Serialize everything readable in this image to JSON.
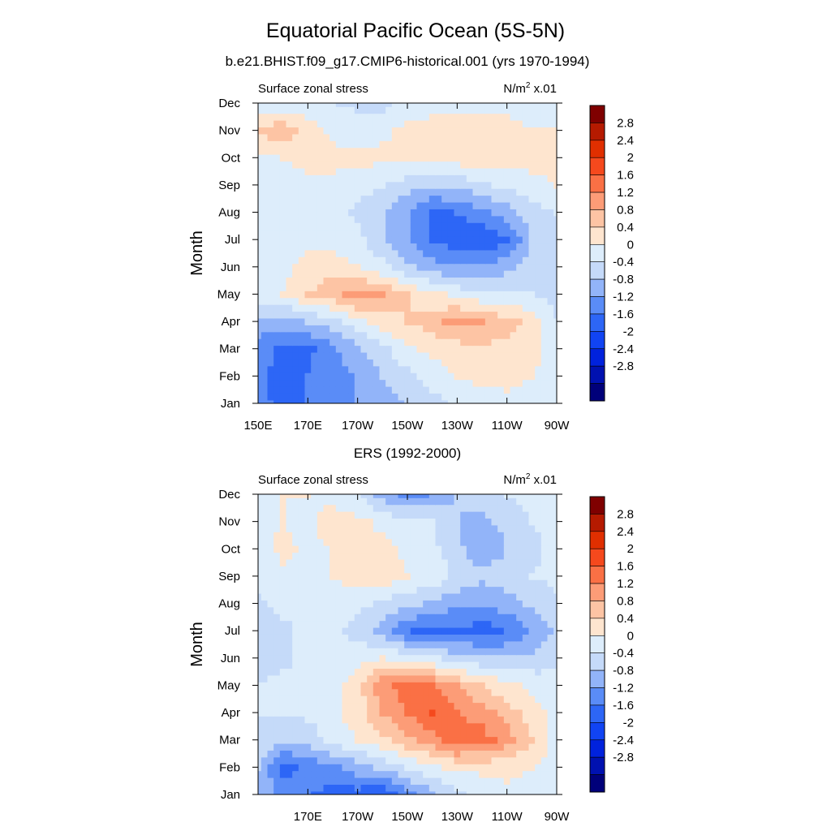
{
  "title": "Equatorial Pacific Ocean (5S-5N)",
  "chart_data": [
    {
      "type": "heatmap",
      "subtitle": "b.e21.BHIST.f09_g17.CMIP6-historical.001 (yrs 1970-1994)",
      "left_label": "Surface zonal stress",
      "right_label_base": "N/m",
      "right_label_exp": "2",
      "right_label_scale": " x.01",
      "ylabel": "Month",
      "x_ticks": [
        "150E",
        "170E",
        "170W",
        "150W",
        "130W",
        "110W",
        "90W"
      ],
      "x_ticks_values": [
        150,
        170,
        190,
        210,
        230,
        250,
        270
      ],
      "y_ticks": [
        "Jan",
        "Feb",
        "Mar",
        "Apr",
        "May",
        "Jun",
        "Jul",
        "Aug",
        "Sep",
        "Oct",
        "Nov",
        "Dec"
      ],
      "xlim": [
        150,
        270
      ],
      "ylim": [
        1,
        12
      ],
      "x": [
        150,
        160,
        170,
        180,
        190,
        200,
        210,
        220,
        230,
        240,
        250,
        260,
        270
      ],
      "rows": [
        {
          "month": "Jan",
          "values": [
            -1.0,
            -1.4,
            -1.2,
            -1.0,
            -0.8,
            -0.6,
            -0.4,
            -0.2,
            0.1,
            0.2,
            0.3,
            0.3,
            0.2
          ]
        },
        {
          "month": "Feb",
          "values": [
            -1.0,
            -1.5,
            -1.2,
            -1.0,
            -0.8,
            -0.4,
            -0.1,
            0.2,
            0.4,
            0.5,
            0.5,
            0.4,
            0.3
          ]
        },
        {
          "month": "Mar",
          "values": [
            -0.9,
            -1.4,
            -1.3,
            -0.9,
            -0.5,
            -0.1,
            0.3,
            0.5,
            0.6,
            0.7,
            0.7,
            0.5,
            0.2
          ]
        },
        {
          "month": "Apr",
          "values": [
            -0.6,
            -0.6,
            -0.4,
            -0.2,
            0.3,
            0.6,
            0.8,
            1.0,
            1.4,
            1.2,
            1.0,
            0.6,
            0.0
          ]
        },
        {
          "month": "May",
          "values": [
            0.2,
            0.4,
            0.8,
            1.1,
            1.4,
            1.2,
            0.8,
            0.5,
            0.3,
            0.1,
            0.0,
            0.0,
            -0.1
          ]
        },
        {
          "month": "Jun",
          "values": [
            0.1,
            0.3,
            0.5,
            0.6,
            0.4,
            0.1,
            -0.3,
            -0.6,
            -0.8,
            -0.7,
            -0.5,
            -0.2,
            -0.1
          ]
        },
        {
          "month": "Jul",
          "values": [
            0.1,
            0.2,
            0.3,
            0.3,
            0.1,
            -0.3,
            -0.8,
            -1.3,
            -1.4,
            -1.6,
            -1.3,
            -0.4,
            -0.1
          ]
        },
        {
          "month": "Aug",
          "values": [
            0.0,
            0.1,
            0.2,
            0.1,
            -0.1,
            -0.4,
            -0.8,
            -1.3,
            -1.2,
            -0.9,
            -0.6,
            -0.2,
            0.0
          ]
        },
        {
          "month": "Sep",
          "values": [
            0.1,
            0.2,
            0.3,
            0.3,
            0.2,
            0.0,
            -0.2,
            -0.4,
            -0.3,
            -0.1,
            0.1,
            0.3,
            0.4
          ]
        },
        {
          "month": "Oct",
          "values": [
            0.3,
            0.4,
            0.5,
            0.5,
            0.5,
            0.5,
            0.5,
            0.6,
            0.6,
            0.7,
            0.6,
            0.5,
            0.5
          ]
        },
        {
          "month": "Nov",
          "values": [
            0.8,
            1.1,
            0.6,
            0.3,
            0.2,
            0.3,
            0.5,
            0.6,
            0.6,
            0.6,
            0.5,
            0.4,
            0.4
          ]
        },
        {
          "month": "Dec",
          "values": [
            0.2,
            0.1,
            0.1,
            0.0,
            -0.1,
            -0.1,
            0.1,
            0.2,
            0.3,
            0.3,
            0.3,
            0.3,
            0.3
          ]
        }
      ]
    },
    {
      "type": "heatmap",
      "subtitle": "ERS (1992-2000)",
      "left_label": "Surface zonal stress",
      "right_label_base": "N/m",
      "right_label_exp": "2",
      "right_label_scale": " x.01",
      "ylabel": "Month",
      "x_ticks": [
        "170E",
        "170W",
        "150W",
        "130W",
        "110W",
        "90W"
      ],
      "x_ticks_values": [
        170,
        190,
        210,
        230,
        250,
        270
      ],
      "y_ticks": [
        "Jan",
        "Feb",
        "Mar",
        "Apr",
        "May",
        "Jun",
        "Jul",
        "Aug",
        "Sep",
        "Oct",
        "Nov",
        "Dec"
      ],
      "xlim": [
        150,
        270
      ],
      "ylim": [
        1,
        12
      ],
      "x": [
        150,
        160,
        170,
        180,
        190,
        200,
        210,
        220,
        230,
        240,
        250,
        260,
        270
      ],
      "rows": [
        {
          "month": "Jan",
          "values": [
            -0.5,
            -1.0,
            -1.2,
            -1.3,
            -1.4,
            -1.6,
            -1.0,
            -0.5,
            -0.1,
            0.1,
            0.3,
            0.2,
            0.1
          ]
        },
        {
          "month": "Feb",
          "values": [
            -0.4,
            -1.3,
            -1.1,
            -1.0,
            -0.6,
            -0.3,
            0.0,
            0.3,
            0.5,
            0.5,
            0.5,
            0.4,
            0.2
          ]
        },
        {
          "month": "Mar",
          "values": [
            -0.1,
            -0.4,
            -0.3,
            0.2,
            0.4,
            0.7,
            1.1,
            1.4,
            1.9,
            1.8,
            1.4,
            0.8,
            0.2
          ]
        },
        {
          "month": "Apr",
          "values": [
            0.0,
            0.1,
            0.1,
            0.3,
            0.6,
            1.2,
            1.6,
            2.0,
            1.6,
            1.4,
            1.0,
            0.6,
            0.2
          ]
        },
        {
          "month": "May",
          "values": [
            0.0,
            0.1,
            0.2,
            0.3,
            0.6,
            1.5,
            1.8,
            1.6,
            1.2,
            0.8,
            0.5,
            0.3,
            0.1
          ]
        },
        {
          "month": "Jun",
          "values": [
            -0.2,
            -0.1,
            0.1,
            0.2,
            0.3,
            0.4,
            0.3,
            0.1,
            -0.2,
            -0.3,
            -0.4,
            -0.3,
            -0.1
          ]
        },
        {
          "month": "Jul",
          "values": [
            -0.1,
            -0.1,
            0.1,
            0.1,
            -0.2,
            -0.6,
            -1.2,
            -1.4,
            -1.3,
            -1.4,
            -1.2,
            -0.8,
            -0.3
          ]
        },
        {
          "month": "Aug",
          "values": [
            -0.1,
            0.1,
            0.2,
            0.3,
            0.1,
            -0.1,
            -0.3,
            -0.5,
            -0.7,
            -0.8,
            -0.6,
            -0.3,
            -0.1
          ]
        },
        {
          "month": "Sep",
          "values": [
            0.1,
            0.3,
            0.2,
            0.4,
            0.6,
            0.7,
            0.4,
            0.3,
            -0.1,
            -0.3,
            -0.2,
            0.0,
            0.1
          ]
        },
        {
          "month": "Oct",
          "values": [
            0.2,
            0.5,
            0.3,
            0.4,
            0.5,
            0.5,
            0.3,
            0.1,
            -0.3,
            -0.7,
            -0.4,
            -0.1,
            0.1
          ]
        },
        {
          "month": "Nov",
          "values": [
            0.3,
            0.4,
            0.3,
            0.7,
            0.5,
            0.3,
            0.2,
            0.0,
            -0.4,
            -0.5,
            -0.3,
            0.0,
            0.2
          ]
        },
        {
          "month": "Dec",
          "values": [
            0.3,
            0.4,
            0.4,
            0.2,
            0.0,
            -0.6,
            -1.0,
            -0.8,
            -0.4,
            -0.2,
            0.0,
            0.2,
            0.2
          ]
        }
      ]
    }
  ],
  "colorbar": {
    "labels": [
      "2.8",
      "2.4",
      "2",
      "1.6",
      "1.2",
      "0.8",
      "0.4",
      "0",
      "-0.4",
      "-0.8",
      "-1.2",
      "-1.6",
      "-2",
      "-2.4",
      "-2.8"
    ],
    "levels": [
      -2.8,
      -2.4,
      -2.0,
      -1.6,
      -1.2,
      -0.8,
      -0.4,
      0.0,
      0.4,
      0.8,
      1.2,
      1.6,
      2.0,
      2.4,
      2.8
    ],
    "colors": [
      "#00007a",
      "#0011b0",
      "#0022dd",
      "#1144f3",
      "#2d66f6",
      "#5a8cf7",
      "#92b4f9",
      "#c5daf9",
      "#ddedfb",
      "#fee5cf",
      "#fdc4a4",
      "#fc9c77",
      "#fa7045",
      "#f5491d",
      "#e02f00",
      "#b51a00",
      "#7f0000"
    ]
  }
}
